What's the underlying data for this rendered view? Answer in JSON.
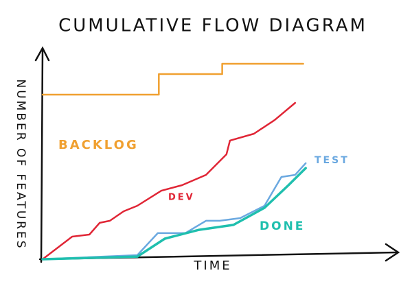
{
  "chart_data": {
    "type": "line",
    "title": "CUMULATIVE FLOW DIAGRAM",
    "x_label": "TIME",
    "y_label": "NUMBER OF FEATURES",
    "xlim": [
      0,
      100
    ],
    "ylim": [
      0,
      100
    ],
    "grid": false,
    "series": [
      {
        "name": "BACKLOG",
        "color": "#f0a030",
        "x": [
          0,
          33,
          33,
          51,
          51,
          74
        ],
        "values": [
          80,
          80,
          90,
          90,
          95,
          95
        ]
      },
      {
        "name": "DEV",
        "color": "#e02535",
        "x": [
          0,
          8.4,
          13.3,
          16.2,
          19.1,
          23,
          26.9,
          33.7,
          39.6,
          46.4,
          52.2,
          53.2,
          60,
          65.9,
          71.7
        ],
        "values": [
          0,
          11,
          12,
          17.7,
          18.7,
          23.3,
          26,
          33.3,
          36,
          41,
          51,
          57.7,
          61,
          67.7,
          76
        ]
      },
      {
        "name": "TEST",
        "color": "#6aa8e0",
        "x": [
          0,
          26.9,
          32.7,
          40.5,
          46.4,
          50.3,
          56.1,
          63,
          67.8,
          71.7,
          74.7
        ],
        "values": [
          0,
          2,
          12.7,
          12.7,
          18.7,
          18.7,
          20,
          26,
          40,
          41,
          46.7
        ]
      },
      {
        "name": "DONE",
        "color": "#1fbfae",
        "x": [
          0,
          26.9,
          34.7,
          44.4,
          54.2,
          63,
          69.8,
          74.7
        ],
        "values": [
          0,
          1.3,
          10,
          14.3,
          16.7,
          25,
          36,
          44.3
        ]
      }
    ]
  }
}
